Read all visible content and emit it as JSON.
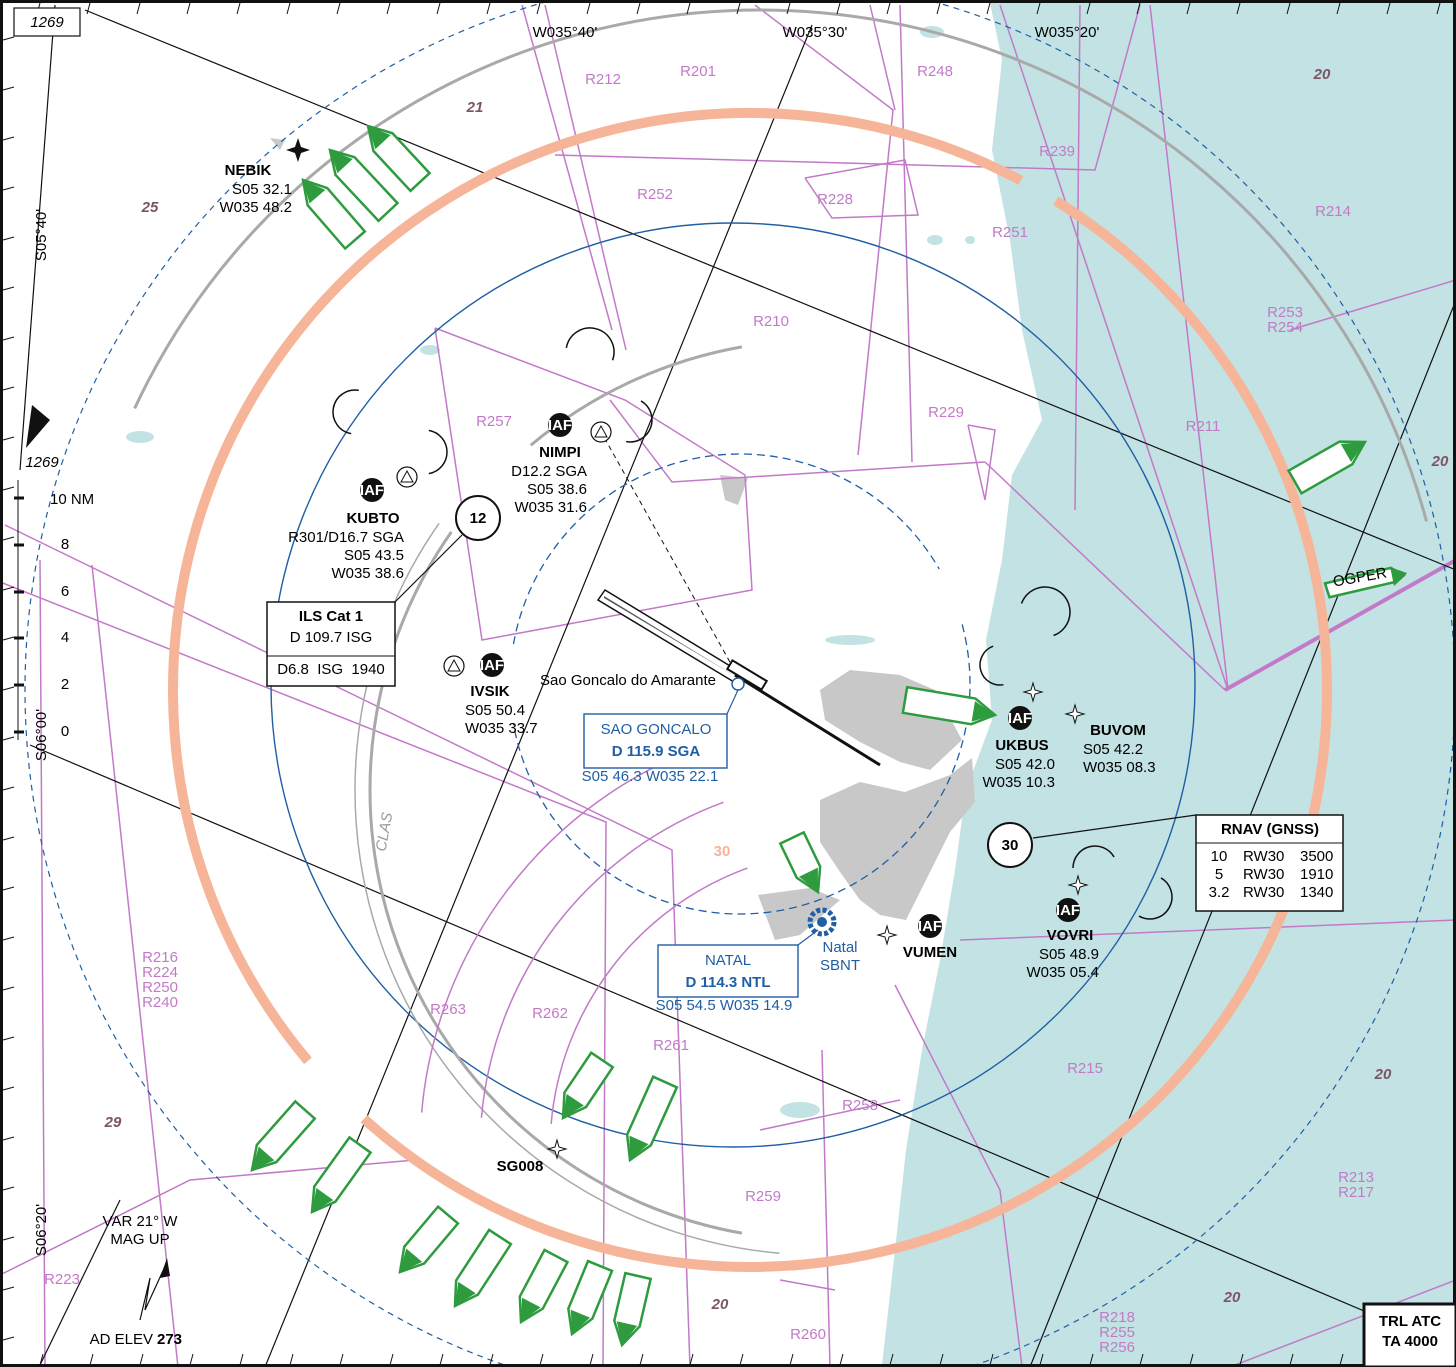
{
  "altitude_box": "1269",
  "altitude_label": "1269",
  "meridians": [
    "W035°40'",
    "W035°30'",
    "W035°20'"
  ],
  "parallels": [
    "S05°40'",
    "S06°00'",
    "S06°20'"
  ],
  "sector_altitudes": [
    "21",
    "25",
    "20",
    "20",
    "20",
    "29",
    "20",
    "20",
    "30"
  ],
  "restricted_areas": [
    [
      "R212"
    ],
    [
      "R201"
    ],
    [
      "R248"
    ],
    [
      "R239"
    ],
    [
      "R252"
    ],
    [
      "R228"
    ],
    [
      "R251"
    ],
    [
      "R214"
    ],
    [
      "R253",
      "R254"
    ],
    [
      "R210"
    ],
    [
      "R229"
    ],
    [
      "R211"
    ],
    [
      "R257"
    ],
    [
      "R216",
      "R224",
      "R250",
      "R240"
    ],
    [
      "R263"
    ],
    [
      "R262"
    ],
    [
      "R261"
    ],
    [
      "R215"
    ],
    [
      "R258"
    ],
    [
      "R213",
      "R217"
    ],
    [
      "R259"
    ],
    [
      "R223"
    ],
    [
      "R218",
      "R255",
      "R256"
    ],
    [
      "R260"
    ]
  ],
  "fixes": [
    {
      "name": "NEBIK",
      "lines": [
        "S05 32.1",
        "W035 48.2"
      ]
    },
    {
      "name": "NIMPI",
      "iaf": "IAF",
      "lines": [
        "D12.2 SGA",
        "S05 38.6",
        "W035 31.6"
      ]
    },
    {
      "name": "KUBTO",
      "iaf": "IAF",
      "lines": [
        "R301/D16.7 SGA",
        "S05 43.5",
        "W035 38.6"
      ]
    },
    {
      "name": "IVSIK",
      "iaf": "IAF",
      "lines": [
        "S05 50.4",
        "W035 33.7"
      ]
    },
    {
      "name": "UKBUS",
      "iaf": "IAF",
      "lines": [
        "S05 42.0",
        "W035 10.3"
      ]
    },
    {
      "name": "BUVOM",
      "lines": [
        "S05 42.2",
        "W035 08.3"
      ]
    },
    {
      "name": "VOVRI",
      "iaf": "IAF",
      "lines": [
        "S05 48.9",
        "W035 05.4"
      ]
    },
    {
      "name": "VUMEN",
      "iaf": "IAF",
      "lines": []
    },
    {
      "name": "SG008",
      "lines": []
    },
    {
      "name": "OGPER",
      "lines": []
    }
  ],
  "circled": [
    "12",
    "30"
  ],
  "ils_box": {
    "title": "ILS Cat 1",
    "freq": "D 109.7 ISG",
    "dme": "D6.8  ISG  1940"
  },
  "rnav_box": {
    "title": "RNAV (GNSS)",
    "rows": [
      [
        "10",
        "RW30",
        "3500"
      ],
      [
        "5",
        "RW30",
        "1910"
      ],
      [
        "3.2",
        "RW30",
        "1340"
      ]
    ]
  },
  "navaids": [
    {
      "name": "SAO GONCALO",
      "freq": "D 115.9 SGA",
      "coords": "S05 46.3 W035 22.1"
    },
    {
      "name": "NATAL",
      "freq": "D 114.3 NTL",
      "coords": "S05 54.5 W035 14.9"
    }
  ],
  "places": [
    "Sao Goncalo do Amarante",
    "CLAS"
  ],
  "airport": {
    "name": "Natal",
    "icao": "SBNT"
  },
  "scale": {
    "unit_label": "10 NM",
    "ticks": [
      "8",
      "6",
      "4",
      "2",
      "0"
    ]
  },
  "variation": [
    "VAR 21° W",
    "MAG UP"
  ],
  "elevation": {
    "label": "AD ELEV",
    "value": "273"
  },
  "transition": [
    "TRL ATC",
    "TA 4000"
  ]
}
